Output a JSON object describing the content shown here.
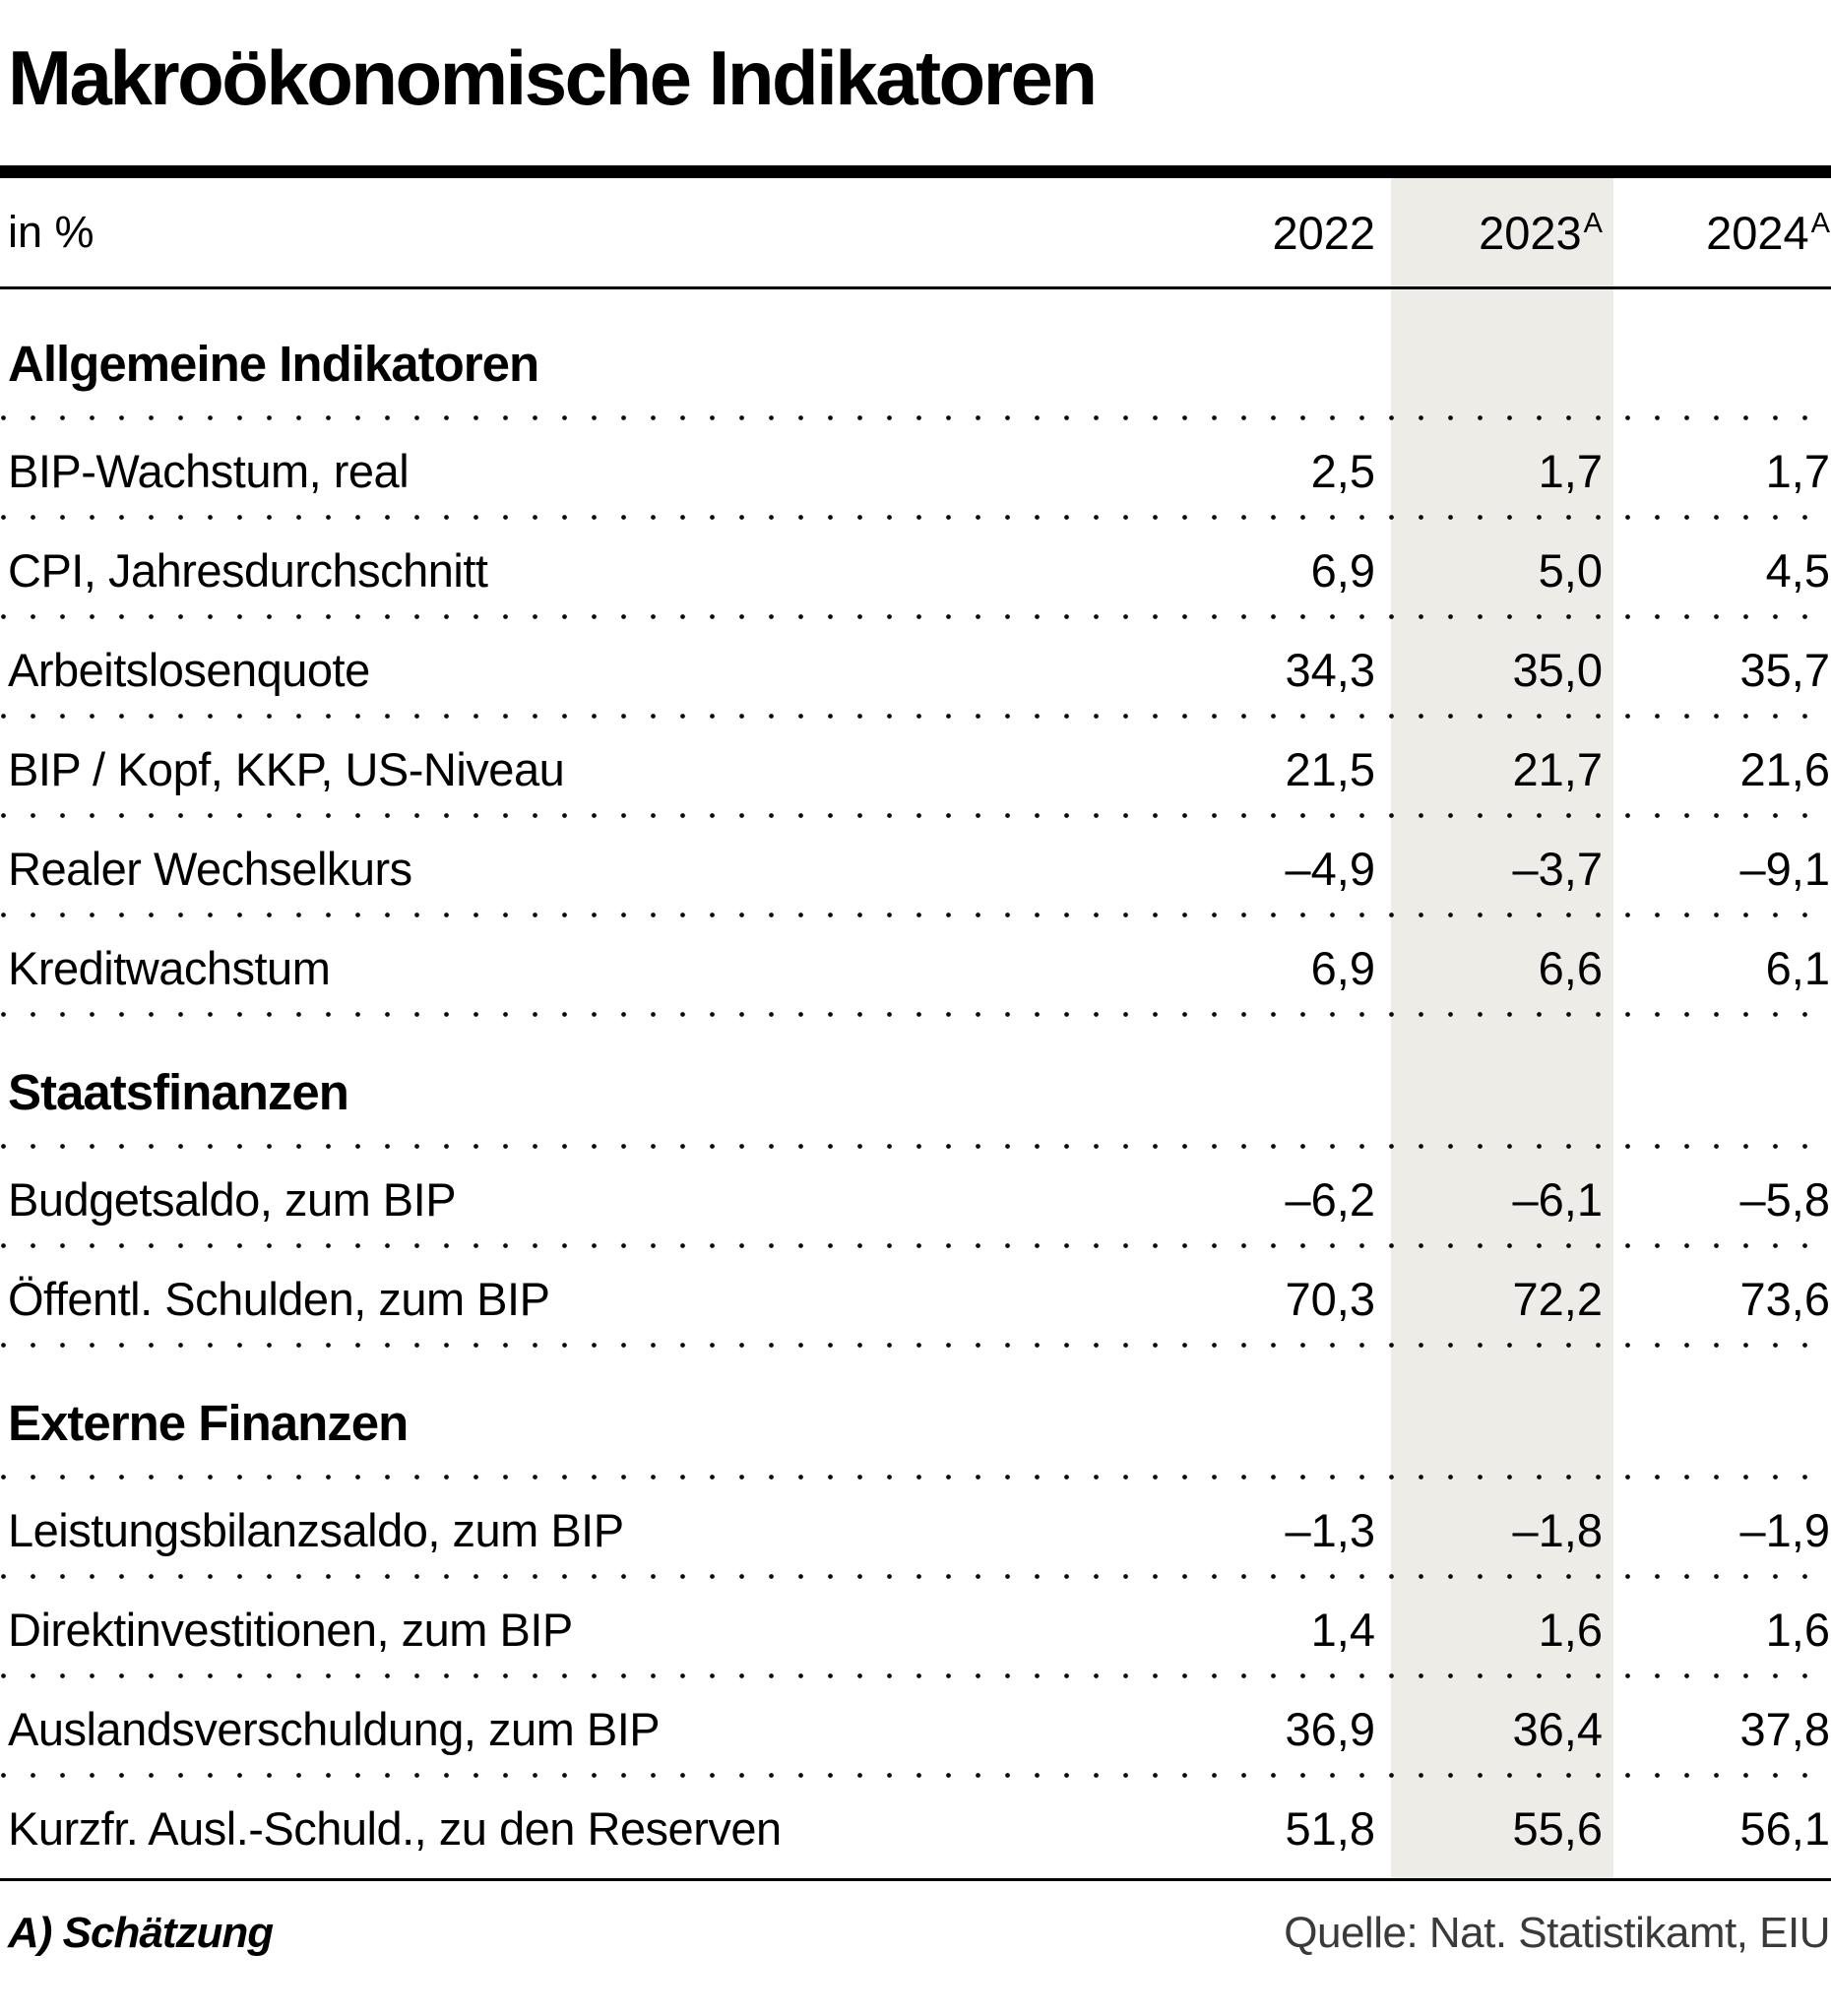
{
  "title": "Makroökonomische Indikatoren",
  "unit_label": "in %",
  "estimate_marker": "A",
  "columns": [
    {
      "year": "2022",
      "estimated": false
    },
    {
      "year": "2023",
      "estimated": true
    },
    {
      "year": "2024",
      "estimated": true
    }
  ],
  "sections": [
    {
      "heading": "Allgemeine Indikatoren",
      "rows": [
        {
          "label": "BIP-Wachstum, real",
          "values": [
            "2,5",
            "1,7",
            "1,7"
          ]
        },
        {
          "label": "CPI, Jahresdurchschnitt",
          "values": [
            "6,9",
            "5,0",
            "4,5"
          ]
        },
        {
          "label": "Arbeitslosenquote",
          "values": [
            "34,3",
            "35,0",
            "35,7"
          ]
        },
        {
          "label": "BIP / Kopf, KKP, US-Niveau",
          "values": [
            "21,5",
            "21,7",
            "21,6"
          ]
        },
        {
          "label": "Realer Wechselkurs",
          "values": [
            "–4,9",
            "–3,7",
            "–9,1"
          ]
        },
        {
          "label": "Kreditwachstum",
          "values": [
            "6,9",
            "6,6",
            "6,1"
          ]
        }
      ]
    },
    {
      "heading": "Staatsfinanzen",
      "rows": [
        {
          "label": "Budgetsaldo, zum BIP",
          "values": [
            "–6,2",
            "–6,1",
            "–5,8"
          ]
        },
        {
          "label": "Öffentl. Schulden, zum BIP",
          "values": [
            "70,3",
            "72,2",
            "73,6"
          ]
        }
      ]
    },
    {
      "heading": "Externe Finanzen",
      "rows": [
        {
          "label": "Leistungsbilanzsaldo, zum BIP",
          "values": [
            "–1,3",
            "–1,8",
            "–1,9"
          ]
        },
        {
          "label": "Direktinvestitionen, zum BIP",
          "values": [
            "1,4",
            "1,6",
            "1,6"
          ]
        },
        {
          "label": "Auslandsverschuldung, zum BIP",
          "values": [
            "36,9",
            "36,4",
            "37,8"
          ]
        },
        {
          "label": "Kurzfr. Ausl.-Schuld., zu den Reserven",
          "values": [
            "51,8",
            "55,6",
            "56,1"
          ]
        }
      ]
    }
  ],
  "footnote": "A) Schätzung",
  "source": "Quelle: Nat. Statistikamt, EIU",
  "colors": {
    "highlight_band": "#EDECE6",
    "text": "#000000",
    "rule": "#000000"
  },
  "chart_data": {
    "type": "table",
    "title": "Makroökonomische Indikatoren",
    "unit": "in %",
    "columns": [
      "2022",
      "2023 (A = Schätzung)",
      "2024 (A = Schätzung)"
    ],
    "highlighted_column": "2023",
    "sections": [
      {
        "heading": "Allgemeine Indikatoren",
        "rows": [
          {
            "label": "BIP-Wachstum, real",
            "values": [
              2.5,
              1.7,
              1.7
            ]
          },
          {
            "label": "CPI, Jahresdurchschnitt",
            "values": [
              6.9,
              5.0,
              4.5
            ]
          },
          {
            "label": "Arbeitslosenquote",
            "values": [
              34.3,
              35.0,
              35.7
            ]
          },
          {
            "label": "BIP / Kopf, KKP, US-Niveau",
            "values": [
              21.5,
              21.7,
              21.6
            ]
          },
          {
            "label": "Realer Wechselkurs",
            "values": [
              -4.9,
              -3.7,
              -9.1
            ]
          },
          {
            "label": "Kreditwachstum",
            "values": [
              6.9,
              6.6,
              6.1
            ]
          }
        ]
      },
      {
        "heading": "Staatsfinanzen",
        "rows": [
          {
            "label": "Budgetsaldo, zum BIP",
            "values": [
              -6.2,
              -6.1,
              -5.8
            ]
          },
          {
            "label": "Öffentl. Schulden, zum BIP",
            "values": [
              70.3,
              72.2,
              73.6
            ]
          }
        ]
      },
      {
        "heading": "Externe Finanzen",
        "rows": [
          {
            "label": "Leistungsbilanzsaldo, zum BIP",
            "values": [
              -1.3,
              -1.8,
              -1.9
            ]
          },
          {
            "label": "Direktinvestitionen, zum BIP",
            "values": [
              1.4,
              1.6,
              1.6
            ]
          },
          {
            "label": "Auslandsverschuldung, zum BIP",
            "values": [
              36.9,
              36.4,
              37.8
            ]
          },
          {
            "label": "Kurzfr. Ausl.-Schuld., zu den Reserven",
            "values": [
              51.8,
              55.6,
              56.1
            ]
          }
        ]
      }
    ],
    "footnote": "A) Schätzung",
    "source": "Quelle: Nat. Statistikamt, EIU"
  }
}
